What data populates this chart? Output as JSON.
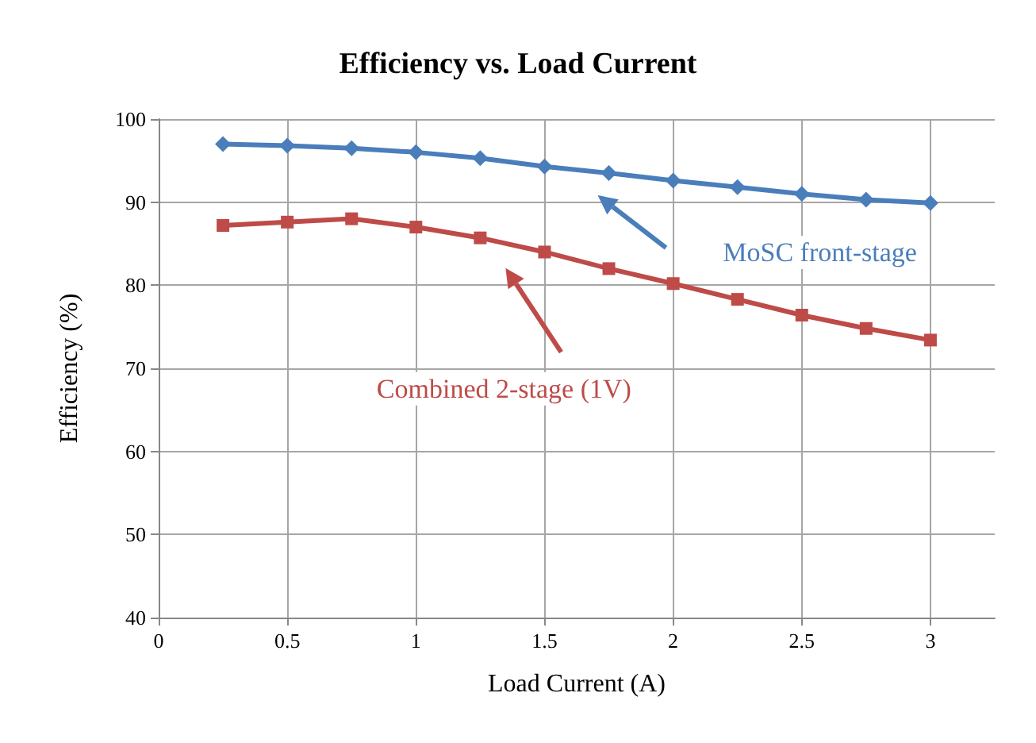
{
  "chart_data": {
    "type": "line",
    "title": "Efficiency vs. Load Current",
    "xlabel": "Load Current (A)",
    "ylabel": "Efficiency (%)",
    "x": [
      0.25,
      0.5,
      0.75,
      1,
      1.25,
      1.5,
      1.75,
      2,
      2.25,
      2.5,
      2.75,
      3
    ],
    "series": [
      {
        "name": "MoSC front-stage",
        "color": "#4a7ebb",
        "marker": "diamond",
        "values": [
          97,
          96.8,
          96.5,
          96,
          95.3,
          94.3,
          93.5,
          92.6,
          91.8,
          91,
          90.3,
          89.9
        ]
      },
      {
        "name": "Combined 2-stage (1V)",
        "color": "#be4b48",
        "marker": "square",
        "values": [
          87.2,
          87.6,
          88,
          87,
          85.7,
          84,
          82,
          80.2,
          78.3,
          76.4,
          74.8,
          73.4
        ]
      }
    ],
    "xlim": [
      0,
      3.25
    ],
    "xticks": [
      0,
      0.5,
      1,
      1.5,
      2,
      2.5,
      3
    ],
    "ylim": [
      40,
      100
    ],
    "yticks": [
      40,
      50,
      60,
      70,
      80,
      90,
      100
    ],
    "grid": true,
    "legend": false,
    "line_style": "solid"
  }
}
